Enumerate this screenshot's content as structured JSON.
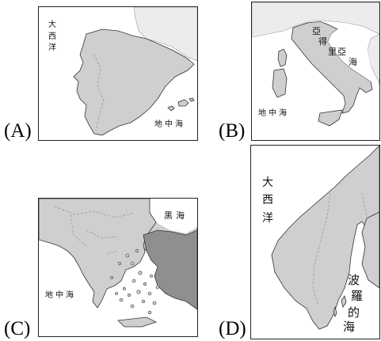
{
  "panels": {
    "A": {
      "option_label": "(A)",
      "region": "Iberian Peninsula",
      "labels": {
        "ocean_chars": [
          "大",
          "西",
          "洋"
        ],
        "sea": "地中海"
      }
    },
    "B": {
      "option_label": "(B)",
      "region": "Italian Peninsula",
      "labels": {
        "adriatic_chars": [
          "亞",
          "得",
          "里",
          "亞",
          "海"
        ],
        "sea": "地中海"
      }
    },
    "C": {
      "option_label": "(C)",
      "region": "Balkan Peninsula",
      "labels": {
        "black_sea": "黑海",
        "sea": "地中海"
      }
    },
    "D": {
      "option_label": "(D)",
      "region": "Scandinavian Peninsula",
      "labels": {
        "ocean_chars": [
          "大",
          "西",
          "洋"
        ],
        "baltic_chars": [
          "波",
          "羅",
          "的",
          "海"
        ]
      }
    }
  },
  "colors": {
    "land": "#cfcfcf",
    "highlight": "#8f8f8f",
    "border": "#222222"
  }
}
